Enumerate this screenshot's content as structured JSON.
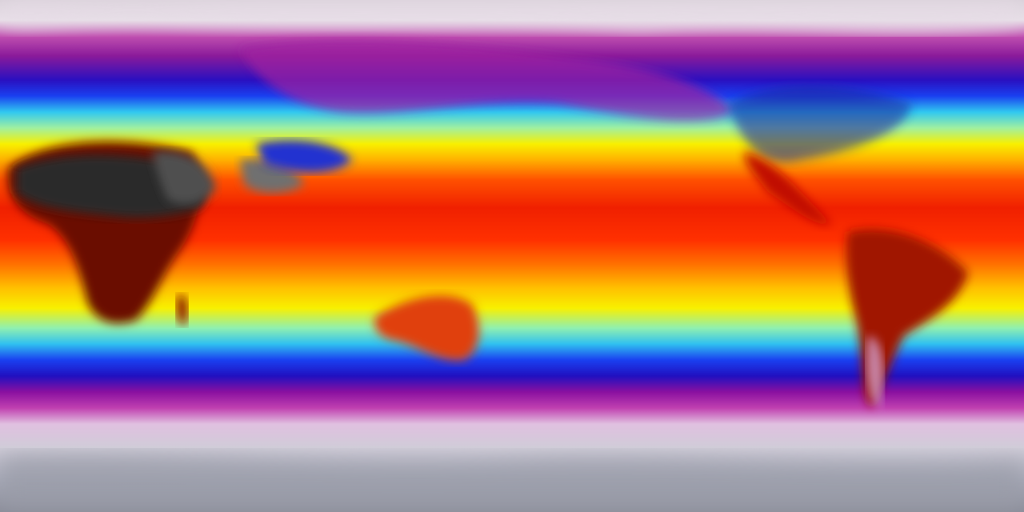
{
  "map": {
    "projection": "equirectangular",
    "variable": "temperature",
    "colormap": [
      "#8a8c98",
      "#e0d8e0",
      "#8a1a9a",
      "#1a40f0",
      "#30c8f0",
      "#f8f000",
      "#ff8000",
      "#f02000",
      "#2a2a2a"
    ]
  }
}
